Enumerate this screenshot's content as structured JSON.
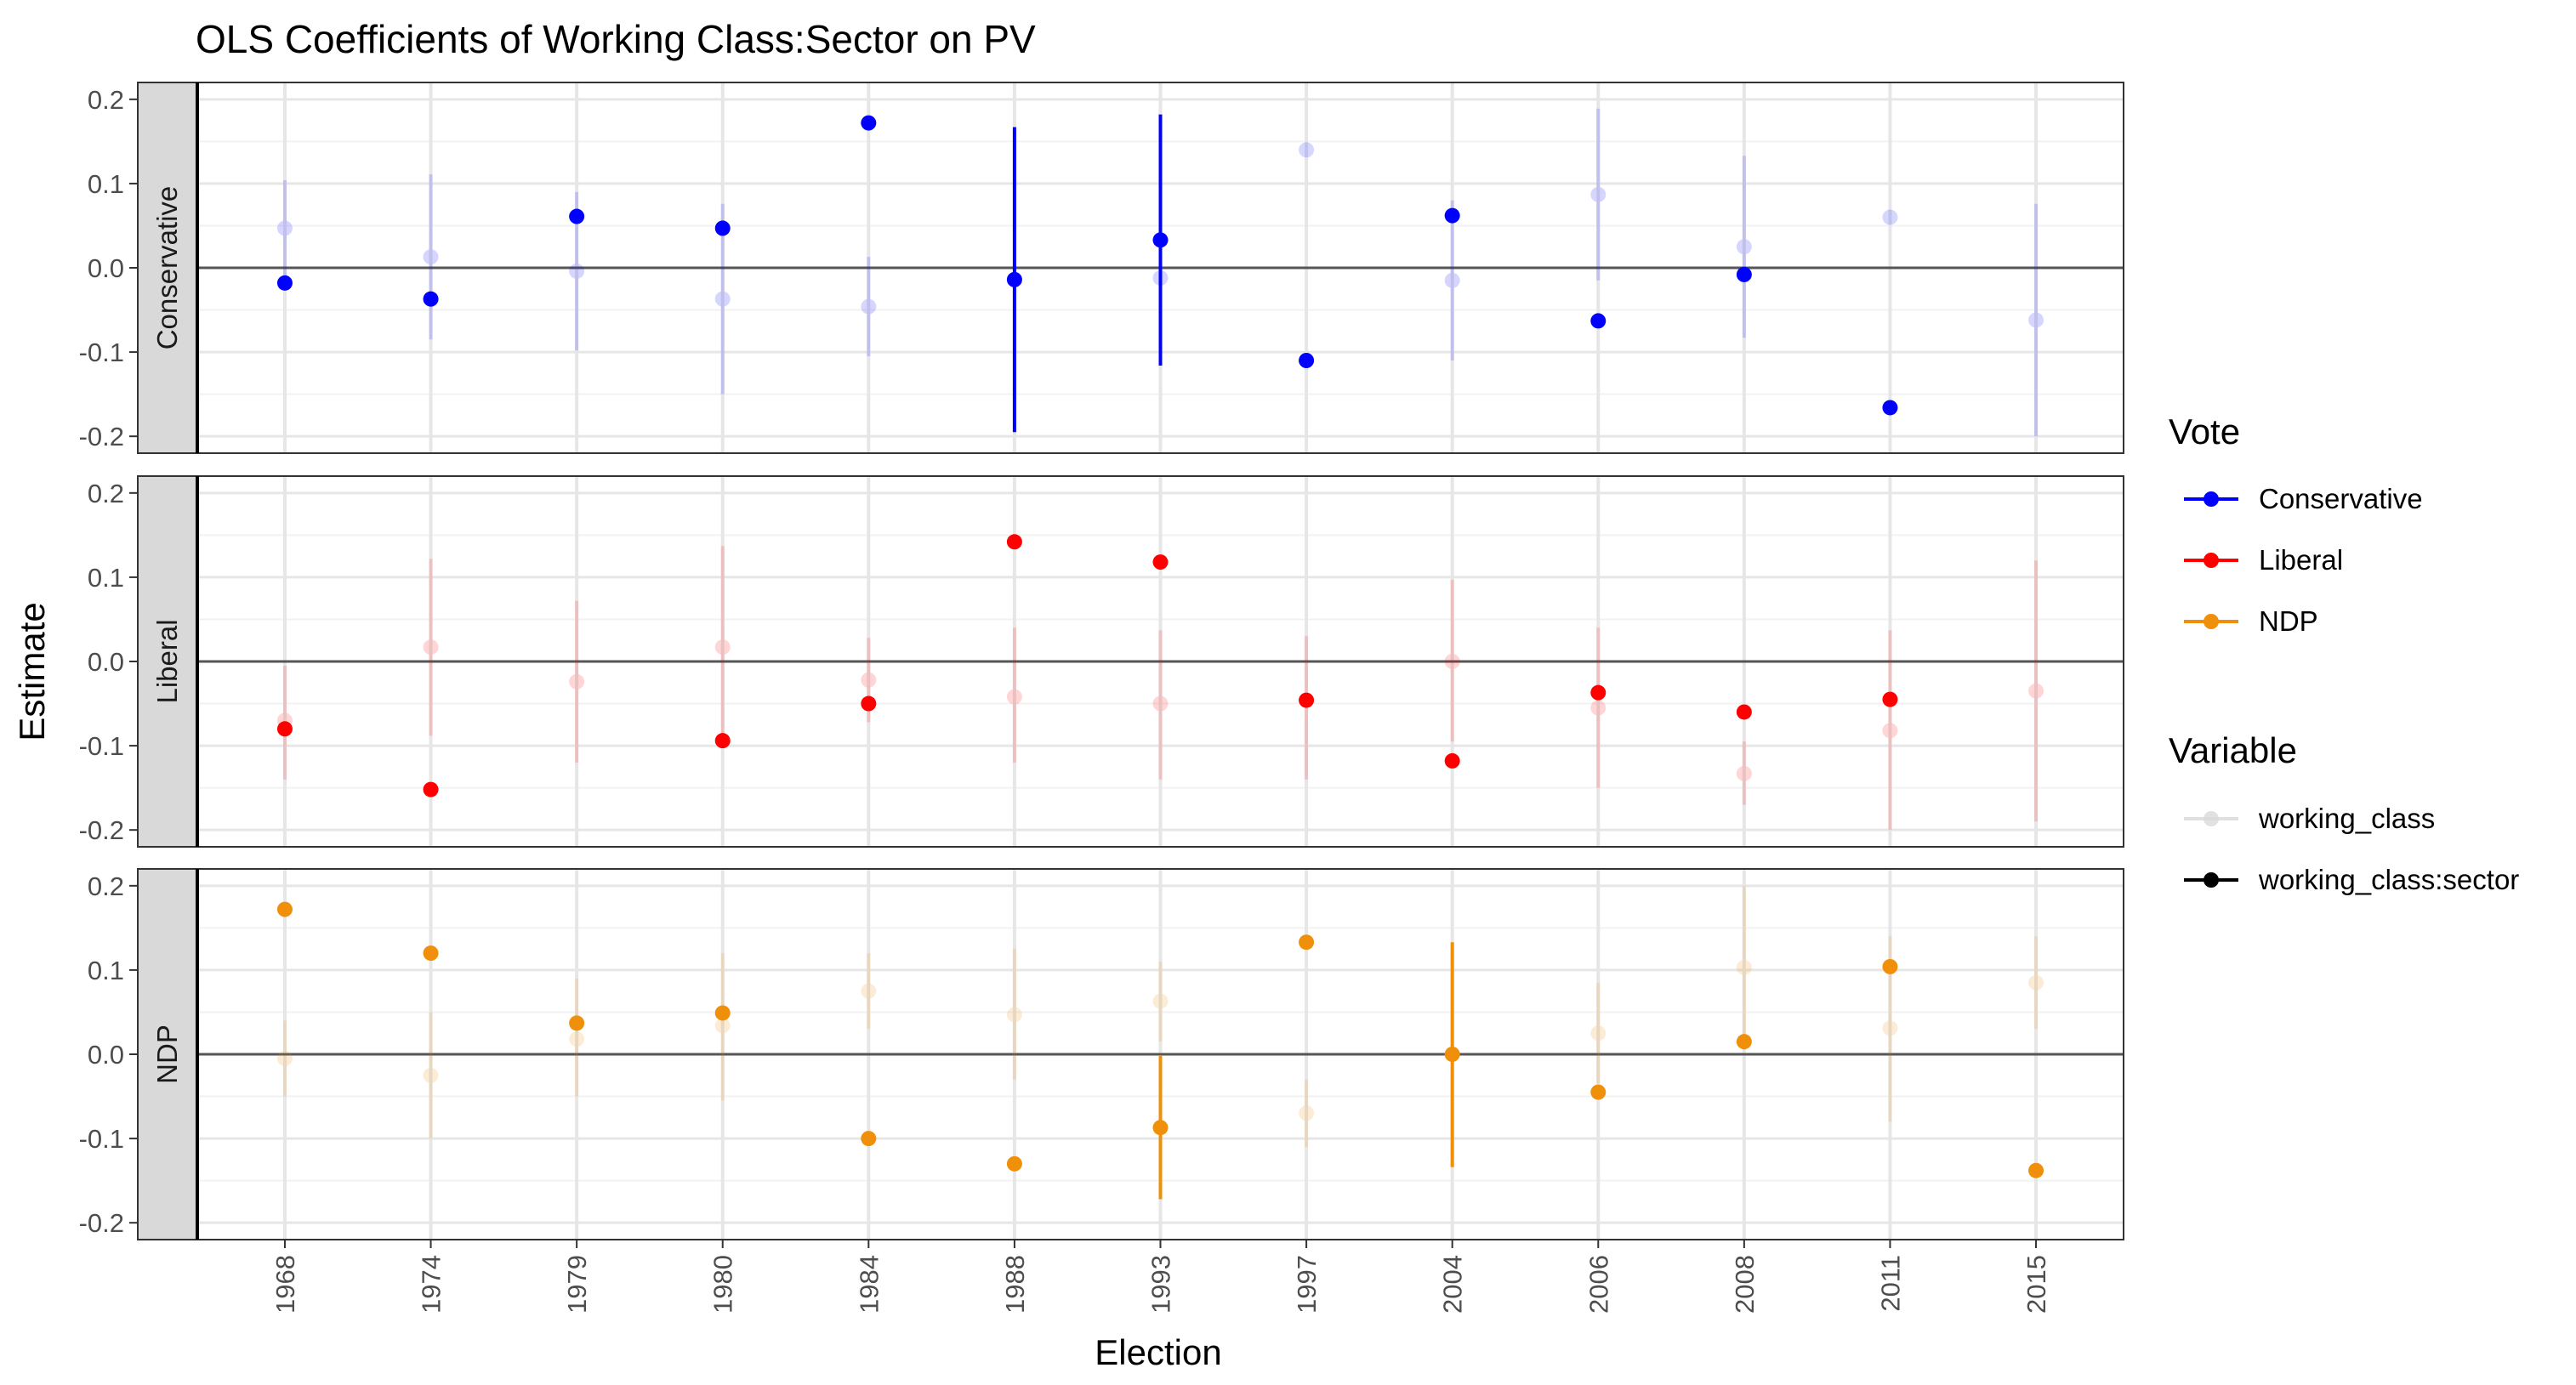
{
  "chart_data": {
    "type": "scatter",
    "title": "OLS Coefficients of Working Class:Sector on PV",
    "xlabel": "Election",
    "ylabel": "Estimate",
    "categories": [
      "1968",
      "1974",
      "1979",
      "1980",
      "1984",
      "1988",
      "1993",
      "1997",
      "2004",
      "2006",
      "2008",
      "2011",
      "2015"
    ],
    "ylim": [
      -0.22,
      0.22
    ],
    "yticks": [
      -0.2,
      -0.1,
      0.0,
      0.1,
      0.2
    ],
    "ytick_labels": [
      "-0.2",
      "-0.1",
      "0.0",
      "0.1",
      "0.2"
    ],
    "grid": true,
    "facets": [
      {
        "label": "Conservative",
        "color": "#0000FF",
        "series": [
          {
            "name": "working_class",
            "values": [
              0.047,
              0.013,
              -0.004,
              -0.037,
              -0.046,
              null,
              -0.012,
              0.14,
              -0.015,
              0.087,
              0.025,
              0.06,
              -0.062
            ],
            "ci": [
              [
                -0.01,
                0.104
              ],
              [
                -0.085,
                0.111
              ],
              [
                -0.098,
                0.09
              ],
              [
                -0.15,
                0.076
              ],
              [
                -0.105,
                0.013
              ],
              null,
              [
                -0.06,
                0.036
              ],
              null,
              [
                -0.11,
                0.08
              ],
              [
                -0.015,
                0.189
              ],
              [
                -0.083,
                0.133
              ],
              null,
              [
                -0.2,
                0.076
              ]
            ]
          },
          {
            "name": "working_class:sector",
            "values": [
              -0.018,
              -0.037,
              0.061,
              0.047,
              0.172,
              -0.014,
              0.033,
              -0.11,
              0.062,
              -0.063,
              -0.008,
              -0.166,
              null
            ],
            "ci": [
              null,
              null,
              null,
              null,
              null,
              [
                -0.195,
                0.167
              ],
              [
                -0.116,
                0.182
              ],
              null,
              null,
              null,
              null,
              null,
              null
            ]
          }
        ]
      },
      {
        "label": "Liberal",
        "color": "#FF0000",
        "series": [
          {
            "name": "working_class",
            "values": [
              -0.07,
              0.017,
              -0.024,
              0.017,
              -0.022,
              -0.042,
              -0.05,
              null,
              0.0,
              -0.055,
              -0.133,
              -0.082,
              -0.035
            ],
            "ci": [
              [
                -0.14,
                -0.005
              ],
              [
                -0.088,
                0.122
              ],
              [
                -0.12,
                0.072
              ],
              [
                -0.1,
                0.137
              ],
              [
                -0.072,
                0.028
              ],
              [
                -0.12,
                0.04
              ],
              [
                -0.14,
                0.037
              ],
              [
                -0.14,
                0.03
              ],
              [
                -0.095,
                0.097
              ],
              [
                -0.15,
                0.04
              ],
              [
                -0.17,
                -0.095
              ],
              [
                -0.2,
                0.037
              ],
              [
                -0.19,
                0.12
              ]
            ]
          },
          {
            "name": "working_class:sector",
            "values": [
              -0.08,
              -0.152,
              null,
              -0.094,
              -0.05,
              0.142,
              0.118,
              -0.046,
              -0.118,
              -0.037,
              -0.06,
              -0.045,
              null
            ],
            "ci": [
              null,
              null,
              null,
              null,
              null,
              null,
              null,
              null,
              null,
              null,
              null,
              null,
              null
            ]
          }
        ]
      },
      {
        "label": "NDP",
        "color": "#F0900A",
        "series": [
          {
            "name": "working_class",
            "values": [
              -0.005,
              -0.025,
              0.018,
              0.034,
              0.075,
              0.047,
              0.063,
              -0.07,
              null,
              0.025,
              0.103,
              0.031,
              0.085
            ],
            "ci": [
              [
                -0.05,
                0.04
              ],
              [
                -0.1,
                0.05
              ],
              [
                -0.05,
                0.09
              ],
              [
                -0.055,
                0.12
              ],
              [
                0.03,
                0.12
              ],
              [
                -0.03,
                0.125
              ],
              [
                0.015,
                0.11
              ],
              [
                -0.11,
                -0.03
              ],
              null,
              [
                -0.035,
                0.085
              ],
              [
                0.005,
                0.2
              ],
              [
                -0.08,
                0.14
              ],
              [
                0.03,
                0.14
              ]
            ]
          },
          {
            "name": "working_class:sector",
            "values": [
              0.172,
              0.12,
              0.037,
              0.049,
              -0.1,
              -0.13,
              -0.087,
              0.133,
              0.0,
              -0.045,
              0.015,
              0.104,
              -0.138
            ],
            "ci": [
              null,
              null,
              null,
              null,
              null,
              null,
              [
                -0.172,
                -0.002
              ],
              null,
              [
                -0.134,
                0.133
              ],
              null,
              null,
              null,
              null
            ]
          }
        ]
      }
    ],
    "legend": {
      "placement": "right",
      "vote": {
        "title": "Vote",
        "items": [
          {
            "label": "Conservative",
            "color": "#0000FF"
          },
          {
            "label": "Liberal",
            "color": "#FF0000"
          },
          {
            "label": "NDP",
            "color": "#F0900A"
          }
        ]
      },
      "variable": {
        "title": "Variable",
        "items": [
          {
            "label": "working_class",
            "color": "#D9D9D9"
          },
          {
            "label": "working_class:sector",
            "color": "#000000"
          }
        ]
      }
    }
  }
}
